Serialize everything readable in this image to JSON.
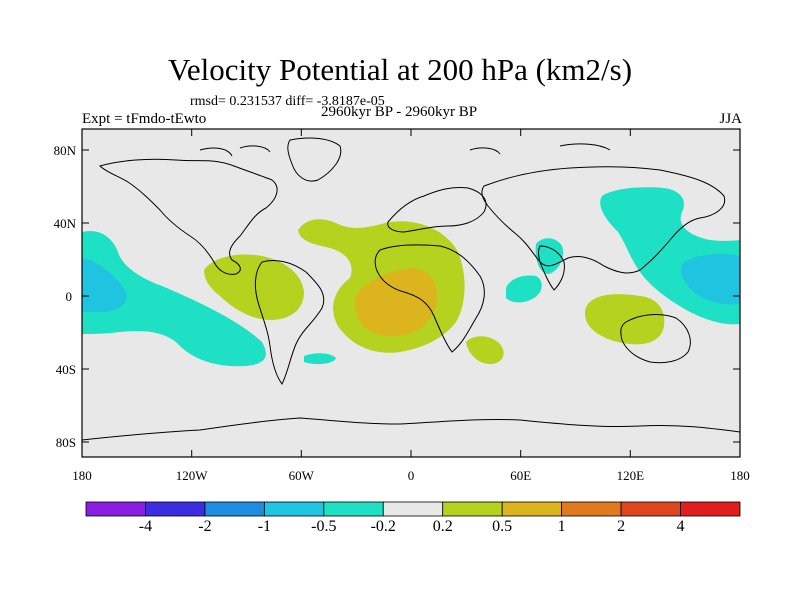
{
  "title": "Velocity Potential at 200 hPa (km2/s)",
  "stats_text": "rmsd= 0.231537 diff= -3.8187e-05",
  "left_label": "Expt = tFmdo-tEwto",
  "center_label": "2960kyr BP - 2960kyr BP",
  "right_label": "JJA",
  "axes": {
    "lon_ticks": [
      "180",
      "120W",
      "60W",
      "0",
      "60E",
      "120E",
      "180"
    ],
    "lat_ticks": [
      "80N",
      "40N",
      "0",
      "40S",
      "80S"
    ]
  },
  "colorbar": {
    "labels": [
      "-4",
      "-2",
      "-1",
      "-0.5",
      "-0.2",
      "0.2",
      "0.5",
      "1",
      "2",
      "4"
    ],
    "colors": [
      "#8a1ee0",
      "#3c2ee0",
      "#1e8ce0",
      "#1ec4e0",
      "#1ee0c4",
      "#e8e8e8",
      "#b4d21e",
      "#dcb41e",
      "#e07a1e",
      "#e0461e",
      "#e01e1e"
    ]
  },
  "colors": {
    "land_ocean_bg": "#e8e8e8",
    "neg_light": "#1ee0c4",
    "neg_mid": "#1ec4e0",
    "pos_light": "#b4d21e",
    "pos_mid": "#dcb41e",
    "coast": "#000000"
  }
}
